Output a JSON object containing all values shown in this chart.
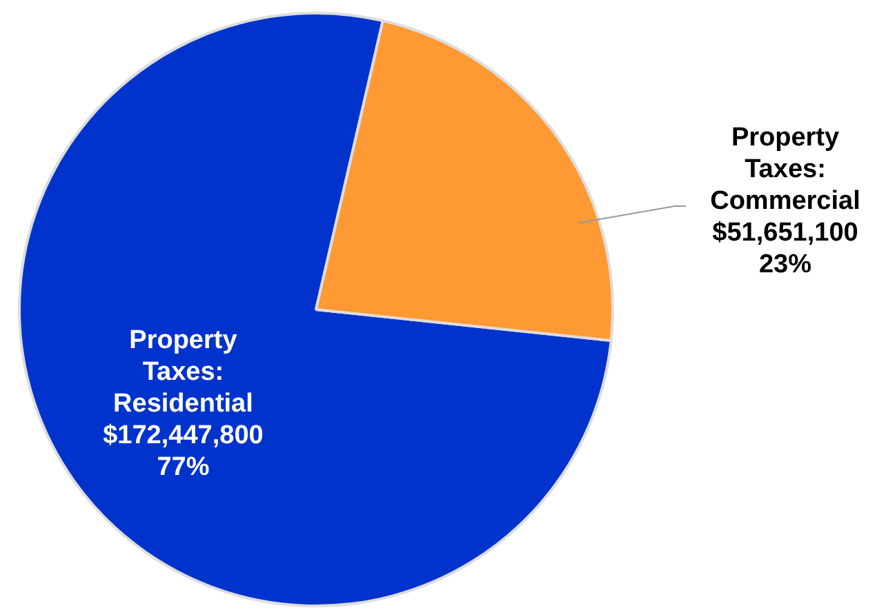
{
  "chart_data": {
    "type": "pie",
    "categories": [
      "Property Taxes: Residential",
      "Property Taxes: Commercial"
    ],
    "values": [
      172447800,
      51651100
    ],
    "colors": [
      "#0033cc",
      "#ff9933"
    ],
    "value_labels": [
      "$172,447,800\n77%",
      "$51,651,100\n23%"
    ]
  }
}
